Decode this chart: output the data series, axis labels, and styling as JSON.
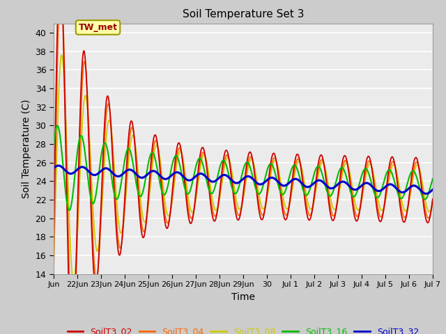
{
  "title": "Soil Temperature Set 3",
  "xlabel": "Time",
  "ylabel": "Soil Temperature (C)",
  "ylim": [
    14,
    41
  ],
  "yticks": [
    14,
    16,
    18,
    20,
    22,
    24,
    26,
    28,
    30,
    32,
    34,
    36,
    38,
    40
  ],
  "bg_color": "#cccccc",
  "plot_bg_color": "#ebebeb",
  "grid_color": "#ffffff",
  "line_colors": {
    "SoilT3_02": "#cc0000",
    "SoilT3_04": "#ff6600",
    "SoilT3_08": "#cccc00",
    "SoilT3_16": "#00bb00",
    "SoilT3_32": "#0000cc"
  },
  "line_widths": {
    "SoilT3_02": 1.3,
    "SoilT3_04": 1.3,
    "SoilT3_08": 1.3,
    "SoilT3_16": 1.5,
    "SoilT3_32": 2.2
  },
  "xtick_labels": [
    "Jun",
    "22Jun",
    "23Jun",
    "24Jun",
    "25Jun",
    "26Jun",
    "27Jun",
    "28Jun",
    "29Jun",
    "30",
    "Jul 1",
    "Jul 2",
    "Jul 3",
    "Jul 4",
    "Jul 5",
    "Jul 6",
    "Jul 7"
  ],
  "annotation_text": "TW_met",
  "legend_entries": [
    "SoilT3_02",
    "SoilT3_04",
    "SoilT3_08",
    "SoilT3_16",
    "SoilT3_32"
  ]
}
